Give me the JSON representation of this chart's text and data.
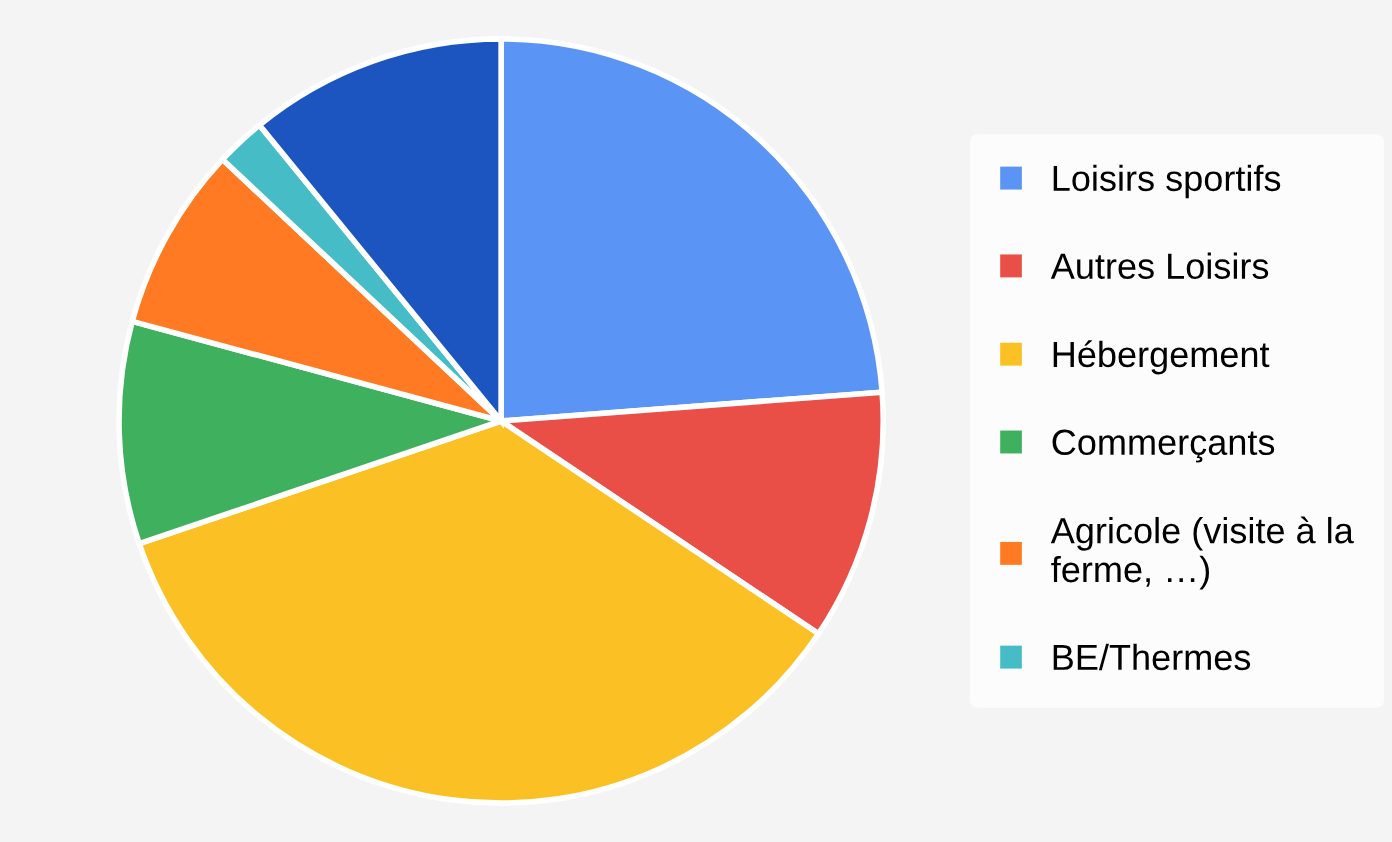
{
  "chart_data": {
    "type": "pie",
    "categories": [
      "Loisirs sportifs",
      "Autres Loisirs",
      "Hébergement",
      "Commerçants",
      "Agricole (visite à la ferme, …)",
      "BE/Thermes",
      null
    ],
    "values": [
      23.8,
      10.6,
      35.4,
      9.4,
      7.8,
      2.1,
      10.9
    ],
    "colors": [
      "#5a94f5",
      "#ea4f47",
      "#fbc124",
      "#3fb05e",
      "#ff7a22",
      "#46bdc6",
      "#1c55c0"
    ],
    "legend": "right"
  }
}
